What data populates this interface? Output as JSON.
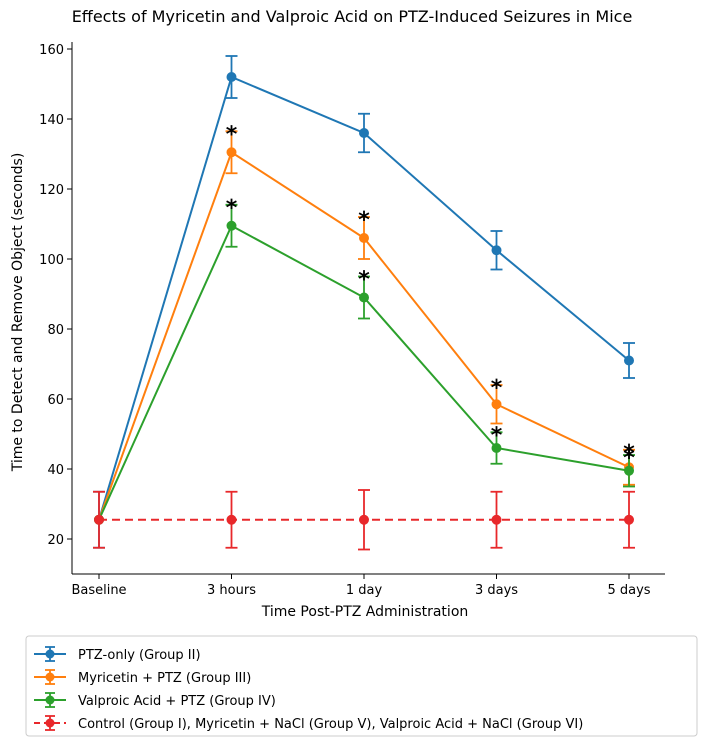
{
  "chart_data": {
    "type": "line",
    "title": "Effects of Myricetin and Valproic Acid on PTZ-Induced Seizures in Mice",
    "xlabel": "Time Post-PTZ Administration",
    "ylabel": "Time to Detect and Remove Object (seconds)",
    "categories": [
      "Baseline",
      "3 hours",
      "1 day",
      "3 days",
      "5 days"
    ],
    "ylim": [
      10,
      162
    ],
    "yticks": [
      20,
      40,
      60,
      80,
      100,
      120,
      140,
      160
    ],
    "grid": false,
    "legend_position": "below",
    "series": [
      {
        "name": "PTZ-only (Group II)",
        "color": "#1f77b4",
        "linestyle": "solid",
        "values": [
          25.5,
          152,
          136,
          102.5,
          71
        ],
        "errors": [
          8,
          6,
          5.5,
          5.5,
          5
        ],
        "stars": [
          0,
          0,
          0,
          0,
          0
        ]
      },
      {
        "name": "Myricetin + PTZ (Group III)",
        "color": "#ff7f0e",
        "linestyle": "solid",
        "values": [
          25.5,
          130.5,
          106,
          58.5,
          40.5
        ],
        "errors": [
          0,
          6,
          6,
          5.5,
          5
        ],
        "stars": [
          0,
          1,
          1,
          1,
          1
        ]
      },
      {
        "name": "Valproic Acid + PTZ (Group IV)",
        "color": "#2ca02c",
        "linestyle": "solid",
        "values": [
          25.5,
          109.5,
          89,
          46,
          39.5
        ],
        "errors": [
          0,
          6,
          6,
          4.5,
          4.5
        ],
        "stars": [
          0,
          1,
          1,
          1,
          1
        ]
      },
      {
        "name": "Control (Group I), Myricetin + NaCl (Group V), Valproic Acid + NaCl (Group VI)",
        "color": "#e8282b",
        "linestyle": "dashed",
        "values": [
          25.5,
          25.5,
          25.5,
          25.5,
          25.5
        ],
        "errors": [
          8,
          8,
          8.5,
          8,
          8
        ],
        "stars": [
          0,
          0,
          0,
          0,
          0
        ]
      }
    ],
    "significance_marker": "*"
  }
}
